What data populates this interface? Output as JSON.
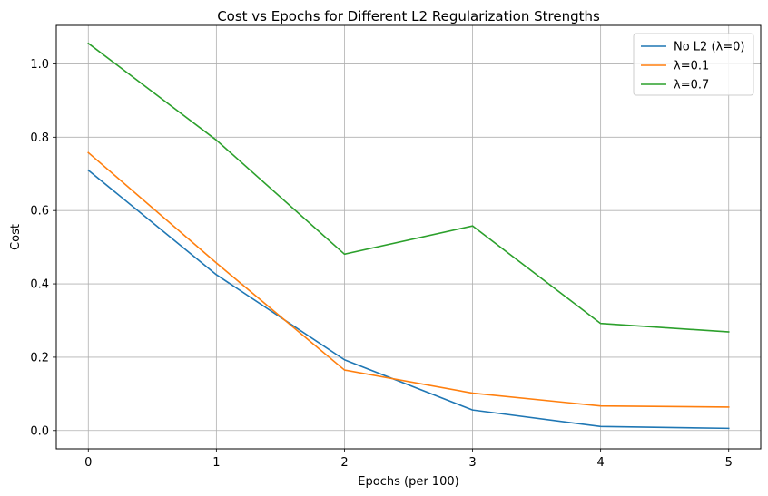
{
  "chart_data": {
    "type": "line",
    "title": "Cost vs Epochs for Different L2 Regularization Strengths",
    "xlabel": "Epochs (per 100)",
    "ylabel": "Cost",
    "x": [
      0,
      1,
      2,
      3,
      4,
      5
    ],
    "xticks": [
      "0",
      "1",
      "2",
      "3",
      "4",
      "5"
    ],
    "yticks": [
      "0.0",
      "0.2",
      "0.4",
      "0.6",
      "0.8",
      "1.0"
    ],
    "xlim": [
      -0.25,
      5.25
    ],
    "ylim": [
      -0.05,
      1.105
    ],
    "grid": true,
    "legend_position": "top-right",
    "series": [
      {
        "name": "No L2 (λ=0)",
        "color": "#1f77b4",
        "values": [
          0.71,
          0.425,
          0.193,
          0.056,
          0.011,
          0.006
        ]
      },
      {
        "name": "λ=0.1",
        "color": "#ff7f0e",
        "values": [
          0.758,
          0.457,
          0.165,
          0.102,
          0.067,
          0.064
        ]
      },
      {
        "name": "λ=0.7",
        "color": "#2ca02c",
        "values": [
          1.056,
          0.792,
          0.481,
          0.558,
          0.292,
          0.269
        ]
      }
    ]
  }
}
